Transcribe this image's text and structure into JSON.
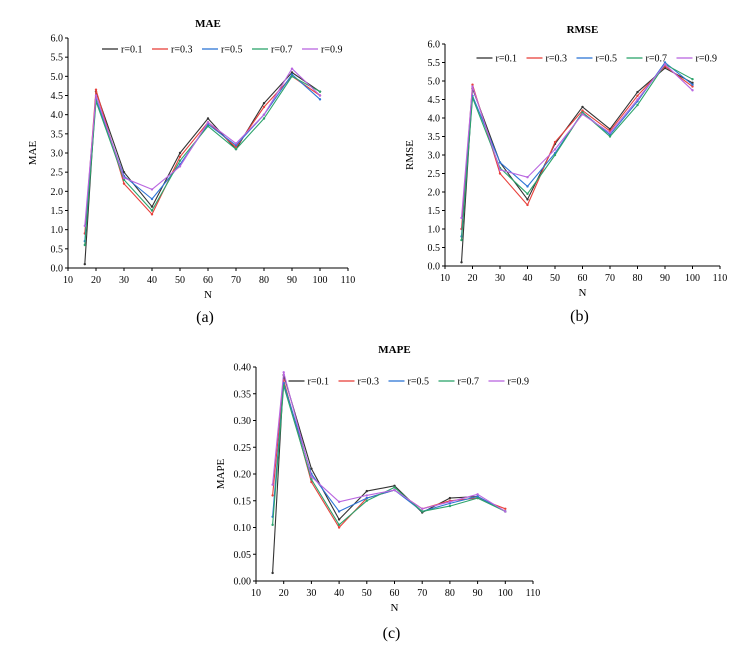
{
  "chart_data": [
    {
      "type": "line",
      "panel_label": "(a)",
      "title": "MAE",
      "xlabel": "N",
      "ylabel": "MAE",
      "xlim": [
        10,
        110
      ],
      "ylim": [
        0,
        6
      ],
      "xticks": [
        "10",
        "20",
        "30",
        "40",
        "50",
        "60",
        "70",
        "80",
        "90",
        "100",
        "110"
      ],
      "yticks": [
        "0.0",
        "0.5",
        "1.0",
        "1.5",
        "2.0",
        "2.5",
        "3.0",
        "3.5",
        "4.0",
        "4.5",
        "5.0",
        "5.5",
        "6.0"
      ],
      "legend": "top",
      "x": [
        16,
        20,
        30,
        40,
        50,
        60,
        70,
        80,
        90,
        100
      ],
      "series": [
        {
          "name": "r=0.1",
          "color": "#333333",
          "values": [
            0.1,
            4.6,
            2.5,
            1.6,
            3.0,
            3.9,
            3.1,
            4.3,
            5.1,
            4.6
          ]
        },
        {
          "name": "r=0.3",
          "color": "#e8413c",
          "values": [
            0.9,
            4.65,
            2.2,
            1.4,
            2.9,
            3.8,
            3.15,
            4.2,
            5.0,
            4.5
          ]
        },
        {
          "name": "r=0.5",
          "color": "#2e75d6",
          "values": [
            0.7,
            4.4,
            2.4,
            1.8,
            2.7,
            3.75,
            3.2,
            4.0,
            5.05,
            4.4
          ]
        },
        {
          "name": "r=0.7",
          "color": "#2ca36b",
          "values": [
            0.6,
            4.35,
            2.3,
            1.5,
            2.8,
            3.7,
            3.1,
            3.9,
            5.0,
            4.6
          ]
        },
        {
          "name": "r=0.9",
          "color": "#b966e0",
          "values": [
            1.1,
            4.5,
            2.35,
            2.05,
            2.65,
            3.8,
            3.25,
            4.0,
            5.2,
            4.5
          ]
        }
      ]
    },
    {
      "type": "line",
      "panel_label": "(b)",
      "title": "RMSE",
      "xlabel": "N",
      "ylabel": "RMSE",
      "xlim": [
        10,
        110
      ],
      "ylim": [
        0,
        6
      ],
      "xticks": [
        "10",
        "20",
        "30",
        "40",
        "50",
        "60",
        "70",
        "80",
        "90",
        "100",
        "110"
      ],
      "yticks": [
        "0.0",
        "0.5",
        "1.0",
        "1.5",
        "2.0",
        "2.5",
        "3.0",
        "3.5",
        "4.0",
        "4.5",
        "5.0",
        "5.5",
        "6.0"
      ],
      "legend": "top",
      "x": [
        16,
        20,
        30,
        40,
        50,
        60,
        70,
        80,
        90,
        100
      ],
      "series": [
        {
          "name": "r=0.1",
          "color": "#333333",
          "values": [
            0.1,
            4.8,
            2.8,
            1.8,
            3.3,
            4.3,
            3.7,
            4.7,
            5.35,
            4.95
          ]
        },
        {
          "name": "r=0.3",
          "color": "#e8413c",
          "values": [
            1.0,
            4.9,
            2.5,
            1.65,
            3.35,
            4.2,
            3.65,
            4.6,
            5.4,
            4.85
          ]
        },
        {
          "name": "r=0.5",
          "color": "#2e75d6",
          "values": [
            0.8,
            4.6,
            2.8,
            2.15,
            3.05,
            4.15,
            3.55,
            4.45,
            5.5,
            4.9
          ]
        },
        {
          "name": "r=0.7",
          "color": "#2ca36b",
          "values": [
            0.7,
            4.55,
            2.65,
            1.95,
            3.0,
            4.15,
            3.5,
            4.35,
            5.45,
            5.05
          ]
        },
        {
          "name": "r=0.9",
          "color": "#b966e0",
          "values": [
            1.3,
            4.85,
            2.6,
            2.4,
            3.15,
            4.1,
            3.6,
            4.5,
            5.45,
            4.75
          ]
        }
      ]
    },
    {
      "type": "line",
      "panel_label": "(c)",
      "title": "MAPE",
      "xlabel": "N",
      "ylabel": "MAPE",
      "xlim": [
        10,
        110
      ],
      "ylim": [
        0,
        0.4
      ],
      "xticks": [
        "10",
        "20",
        "30",
        "40",
        "50",
        "60",
        "70",
        "80",
        "90",
        "100",
        "110"
      ],
      "yticks": [
        "0.00",
        "0.05",
        "0.10",
        "0.15",
        "0.20",
        "0.25",
        "0.30",
        "0.35",
        "0.40"
      ],
      "legend": "top",
      "x": [
        16,
        20,
        30,
        40,
        50,
        60,
        70,
        80,
        90,
        100
      ],
      "series": [
        {
          "name": "r=0.1",
          "color": "#333333",
          "values": [
            0.015,
            0.385,
            0.21,
            0.115,
            0.168,
            0.178,
            0.128,
            0.155,
            0.158,
            0.13
          ]
        },
        {
          "name": "r=0.3",
          "color": "#e8413c",
          "values": [
            0.16,
            0.375,
            0.185,
            0.1,
            0.155,
            0.17,
            0.135,
            0.15,
            0.155,
            0.135
          ]
        },
        {
          "name": "r=0.5",
          "color": "#2e75d6",
          "values": [
            0.12,
            0.37,
            0.2,
            0.13,
            0.155,
            0.17,
            0.13,
            0.145,
            0.158,
            0.13
          ]
        },
        {
          "name": "r=0.7",
          "color": "#2ca36b",
          "values": [
            0.105,
            0.365,
            0.19,
            0.105,
            0.15,
            0.175,
            0.13,
            0.14,
            0.155,
            0.13
          ]
        },
        {
          "name": "r=0.9",
          "color": "#b966e0",
          "values": [
            0.18,
            0.39,
            0.195,
            0.148,
            0.16,
            0.17,
            0.135,
            0.148,
            0.162,
            0.13
          ]
        }
      ]
    }
  ]
}
